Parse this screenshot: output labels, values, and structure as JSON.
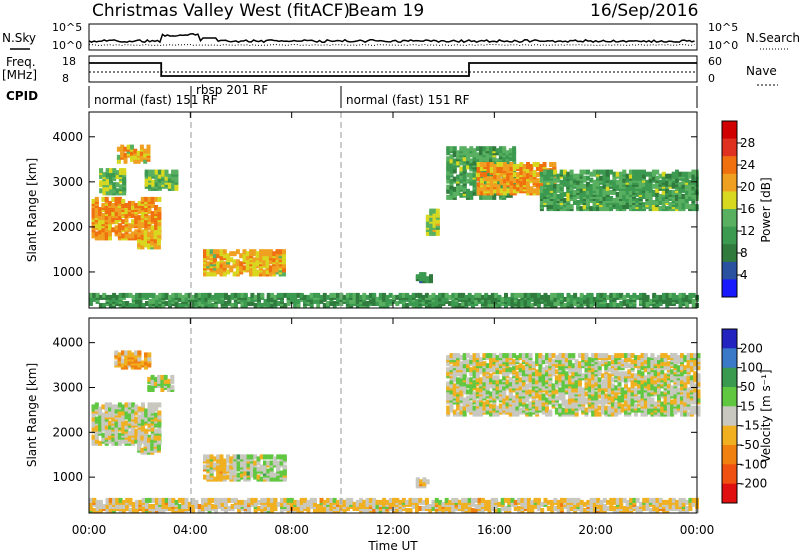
{
  "header": {
    "station": "Christmas Valley West (fitACF)",
    "beam": "Beam 19",
    "date": "16/Sep/2016"
  },
  "summary_panels": {
    "nsky_label": "N.Sky",
    "nsearch_label": "N.Search",
    "freq_label_line1": "Freq.",
    "freq_label_line2": "[MHz]",
    "nave_label": "Nave",
    "cpid_label": "CPID",
    "noise_ticks": [
      "10^5",
      "10^0"
    ],
    "freq_ticks": [
      "18",
      "8"
    ],
    "nave_ticks": [
      "60",
      "0"
    ],
    "cpid_segments": [
      {
        "label": "normal (fast) 151 RF"
      },
      {
        "label": "rbsp 201 RF"
      },
      {
        "label": "normal (fast) 151 RF"
      }
    ]
  },
  "colorbars": {
    "power": {
      "label": "Power [dB]",
      "ticks": [
        "28",
        "24",
        "20",
        "16",
        "12",
        "8",
        "4"
      ]
    },
    "velocity": {
      "label": "Velocity [m s⁻¹]",
      "ticks": [
        "200",
        "100",
        "50",
        "15",
        "-15",
        "-50",
        "-100",
        "-200"
      ]
    }
  },
  "colors": {
    "power_scale": [
      "#1a1aff",
      "#2a50a0",
      "#2f7a3c",
      "#3c9a50",
      "#58b060",
      "#d8d820",
      "#f0a020",
      "#f07010",
      "#e03020",
      "#d00000"
    ],
    "velocity_scale": [
      "#2323c0",
      "#3a78c8",
      "#3a9a50",
      "#60c840",
      "#c8c8c0",
      "#f0b020",
      "#f08010",
      "#f05010",
      "#e01010"
    ]
  },
  "chart_data": [
    {
      "type": "heatmap",
      "title": "Power",
      "xlabel": "Time UT",
      "ylabel": "Slant Range [km]",
      "x_ticks": [
        "00:00",
        "04:00",
        "08:00",
        "12:00",
        "16:00",
        "20:00",
        "00:00"
      ],
      "x_range_hours": [
        0,
        24
      ],
      "y_ticks": [
        "1000",
        "2000",
        "3000",
        "4000"
      ],
      "ylim": [
        200,
        4550
      ],
      "colorbar": {
        "label": "Power [dB]",
        "range": [
          0,
          32
        ]
      },
      "echo_regions": [
        {
          "t": [
            0.1,
            2.7
          ],
          "r": [
            1700,
            2600
          ],
          "value": 22
        },
        {
          "t": [
            0.4,
            1.4
          ],
          "r": [
            2700,
            3200
          ],
          "value": 14
        },
        {
          "t": [
            1.1,
            2.3
          ],
          "r": [
            3400,
            3750
          ],
          "value": 20
        },
        {
          "t": [
            1.9,
            2.7
          ],
          "r": [
            1500,
            1850
          ],
          "value": 20
        },
        {
          "t": [
            2.2,
            3.4
          ],
          "r": [
            2800,
            3200
          ],
          "value": 14
        },
        {
          "t": [
            4.5,
            7.7
          ],
          "r": [
            900,
            1400
          ],
          "value": 20
        },
        {
          "t": [
            12.9,
            13.5
          ],
          "r": [
            750,
            900
          ],
          "value": 8
        },
        {
          "t": [
            13.3,
            13.7
          ],
          "r": [
            1800,
            2300
          ],
          "value": 16
        },
        {
          "t": [
            14.1,
            16.8
          ],
          "r": [
            2600,
            3700
          ],
          "value": 12
        },
        {
          "t": [
            15.3,
            18.4
          ],
          "r": [
            2700,
            3350
          ],
          "value": 22
        },
        {
          "t": [
            17.8,
            24.0
          ],
          "r": [
            2350,
            3200
          ],
          "value": 12
        },
        {
          "t": [
            0.0,
            24.0
          ],
          "r": [
            200,
            450
          ],
          "value": 10
        }
      ]
    },
    {
      "type": "heatmap",
      "title": "Velocity",
      "xlabel": "Time UT",
      "ylabel": "Slant Range [km]",
      "x_ticks": [
        "00:00",
        "04:00",
        "08:00",
        "12:00",
        "16:00",
        "20:00",
        "00:00"
      ],
      "x_range_hours": [
        0,
        24
      ],
      "y_ticks": [
        "1000",
        "2000",
        "3000",
        "4000"
      ],
      "ylim": [
        200,
        4550
      ],
      "colorbar": {
        "label": "Velocity [m s⁻¹]",
        "range": [
          -250,
          250
        ]
      },
      "echo_regions": [
        {
          "t": [
            0.1,
            2.7
          ],
          "r": [
            1700,
            2600
          ],
          "value": 0
        },
        {
          "t": [
            1.0,
            2.3
          ],
          "r": [
            3400,
            3750
          ],
          "value": -80
        },
        {
          "t": [
            1.9,
            2.7
          ],
          "r": [
            1500,
            1850
          ],
          "value": 0
        },
        {
          "t": [
            2.3,
            3.3
          ],
          "r": [
            2900,
            3200
          ],
          "value": 0
        },
        {
          "t": [
            4.5,
            5.7
          ],
          "r": [
            900,
            1400
          ],
          "value": -30
        },
        {
          "t": [
            5.7,
            7.7
          ],
          "r": [
            900,
            1400
          ],
          "value": 30
        },
        {
          "t": [
            12.9,
            13.4
          ],
          "r": [
            750,
            900
          ],
          "value": -40
        },
        {
          "t": [
            14.1,
            24.0
          ],
          "r": [
            2350,
            3700
          ],
          "value": 0
        },
        {
          "t": [
            0.0,
            24.0
          ],
          "r": [
            200,
            450
          ],
          "value": -30
        }
      ]
    }
  ]
}
